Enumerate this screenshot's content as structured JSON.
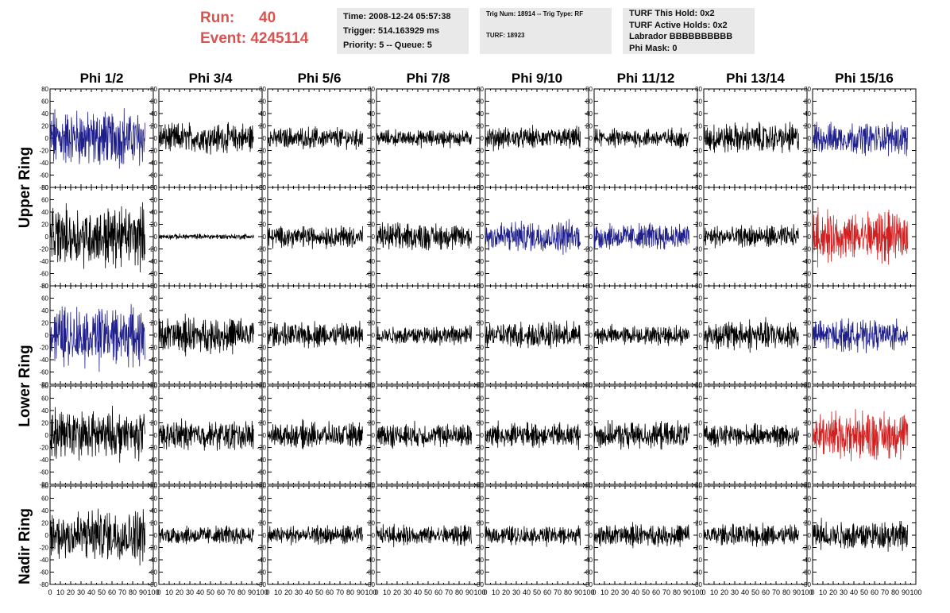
{
  "header": {
    "run_label": "Run:",
    "run_value": "40",
    "event_label": "Event:",
    "event_value": "4245114",
    "box1": [
      "Time: 2008-12-24 05:57:38",
      "Trigger: 514.163929 ms",
      "Priority: 5 -- Queue: 5"
    ],
    "box2": [
      "Trig Num: 18914 -- Trig Type: RF",
      "TURF: 18923"
    ],
    "box3": [
      "TURF This Hold: 0x2",
      "TURF Active Holds: 0x2",
      "Labrador BBBBBBBBBB",
      "Phi Mask: 0"
    ]
  },
  "chart_data": {
    "type": "line",
    "columns": [
      "Phi 1/2",
      "Phi 3/4",
      "Phi 5/6",
      "Phi 7/8",
      "Phi 9/10",
      "Phi 11/12",
      "Phi 13/14",
      "Phi 15/16"
    ],
    "ring_labels": [
      "Upper Ring",
      "Lower Ring",
      "Nadir Ring"
    ],
    "ylim": [
      -80,
      80
    ],
    "yticks": [
      -80,
      -60,
      -40,
      -20,
      0,
      20,
      40,
      60,
      80
    ],
    "xlim": [
      0,
      100
    ],
    "xticks": [
      0,
      10,
      20,
      30,
      40,
      50,
      60,
      70,
      80,
      90,
      100
    ],
    "samples": 260,
    "x_extent": 92,
    "colors": {
      "normal": "#000000",
      "blue": "#1f1f8c",
      "red": "#d21f1f"
    },
    "panels": [
      [
        {
          "amp": 42,
          "color": "blue"
        },
        {
          "amp": 22,
          "color": "normal"
        },
        {
          "amp": 16,
          "color": "normal"
        },
        {
          "amp": 12,
          "color": "normal"
        },
        {
          "amp": 16,
          "color": "normal"
        },
        {
          "amp": 14,
          "color": "normal"
        },
        {
          "amp": 22,
          "color": "normal"
        },
        {
          "amp": 24,
          "color": "blue"
        }
      ],
      [
        {
          "amp": 44,
          "color": "normal"
        },
        {
          "amp": 4,
          "color": "normal"
        },
        {
          "amp": 16,
          "color": "normal"
        },
        {
          "amp": 20,
          "color": "normal"
        },
        {
          "amp": 24,
          "color": "blue"
        },
        {
          "amp": 20,
          "color": "blue"
        },
        {
          "amp": 16,
          "color": "normal"
        },
        {
          "amp": 36,
          "color": "red"
        }
      ],
      [
        {
          "amp": 44,
          "color": "blue"
        },
        {
          "amp": 26,
          "color": "normal"
        },
        {
          "amp": 18,
          "color": "normal"
        },
        {
          "amp": 14,
          "color": "normal"
        },
        {
          "amp": 20,
          "color": "normal"
        },
        {
          "amp": 14,
          "color": "normal"
        },
        {
          "amp": 22,
          "color": "normal"
        },
        {
          "amp": 22,
          "color": "blue"
        }
      ],
      [
        {
          "amp": 36,
          "color": "normal"
        },
        {
          "amp": 22,
          "color": "normal"
        },
        {
          "amp": 18,
          "color": "normal"
        },
        {
          "amp": 18,
          "color": "normal"
        },
        {
          "amp": 18,
          "color": "normal"
        },
        {
          "amp": 20,
          "color": "normal"
        },
        {
          "amp": 16,
          "color": "normal"
        },
        {
          "amp": 36,
          "color": "red"
        }
      ],
      [
        {
          "amp": 40,
          "color": "normal"
        },
        {
          "amp": 14,
          "color": "normal"
        },
        {
          "amp": 14,
          "color": "normal"
        },
        {
          "amp": 14,
          "color": "normal"
        },
        {
          "amp": 14,
          "color": "normal"
        },
        {
          "amp": 16,
          "color": "normal"
        },
        {
          "amp": 16,
          "color": "normal"
        },
        {
          "amp": 22,
          "color": "normal"
        }
      ]
    ]
  }
}
